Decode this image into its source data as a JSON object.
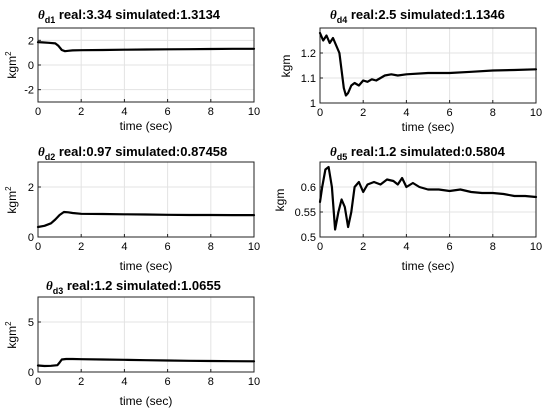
{
  "chart_data": [
    {
      "type": "line",
      "title": {
        "symbol": "θ",
        "subscript": "d1",
        "text": " real:3.34  simulated:1.3134"
      },
      "xlabel": "time (sec)",
      "ylabel": "kgm",
      "ylabel_sup": "2",
      "xlim": [
        0,
        10
      ],
      "ylim": [
        -3,
        3
      ],
      "xticks": [
        0,
        2,
        4,
        6,
        8,
        10
      ],
      "yticks": [
        -2,
        0,
        2
      ],
      "grid": true,
      "series": [
        {
          "x": [
            0,
            0.2,
            0.5,
            0.8,
            0.95,
            1.1,
            1.25,
            1.4,
            1.6,
            2.0,
            3,
            4,
            5,
            6,
            7,
            8,
            9,
            10
          ],
          "y": [
            1.85,
            1.83,
            1.8,
            1.75,
            1.55,
            1.22,
            1.12,
            1.15,
            1.18,
            1.2,
            1.22,
            1.24,
            1.26,
            1.27,
            1.28,
            1.3,
            1.31,
            1.31
          ]
        }
      ]
    },
    {
      "type": "line",
      "title": {
        "symbol": "θ",
        "subscript": "d4",
        "text": " real:2.5  simulated:1.1346"
      },
      "xlabel": "time (sec)",
      "ylabel": "kgm",
      "ylabel_sup": "",
      "xlim": [
        0,
        10
      ],
      "ylim": [
        1.0,
        1.3
      ],
      "xticks": [
        0,
        2,
        4,
        6,
        8,
        10
      ],
      "yticks": [
        1,
        1.1,
        1.2
      ],
      "grid": true,
      "series": [
        {
          "x": [
            0,
            0.15,
            0.3,
            0.45,
            0.6,
            0.75,
            0.9,
            1.0,
            1.1,
            1.2,
            1.3,
            1.45,
            1.6,
            1.8,
            2.0,
            2.2,
            2.4,
            2.6,
            2.8,
            3.0,
            3.3,
            3.6,
            4.0,
            5.0,
            6.0,
            7.0,
            8.0,
            9.0,
            10.0
          ],
          "y": [
            1.28,
            1.25,
            1.27,
            1.24,
            1.26,
            1.23,
            1.2,
            1.13,
            1.06,
            1.03,
            1.04,
            1.07,
            1.08,
            1.07,
            1.09,
            1.085,
            1.095,
            1.09,
            1.1,
            1.11,
            1.115,
            1.11,
            1.115,
            1.12,
            1.12,
            1.125,
            1.13,
            1.132,
            1.135
          ]
        }
      ]
    },
    {
      "type": "line",
      "title": {
        "symbol": "θ",
        "subscript": "d2",
        "text": " real:0.97  simulated:0.87458"
      },
      "xlabel": "time (sec)",
      "ylabel": "kgm",
      "ylabel_sup": "2",
      "xlim": [
        0,
        10
      ],
      "ylim": [
        0,
        3
      ],
      "xticks": [
        0,
        2,
        4,
        6,
        8,
        10
      ],
      "yticks": [
        0,
        2
      ],
      "grid": true,
      "series": [
        {
          "x": [
            0,
            0.3,
            0.6,
            0.8,
            1.0,
            1.2,
            1.4,
            1.6,
            2.0,
            3,
            4,
            5,
            6,
            7,
            8,
            9,
            10
          ],
          "y": [
            0.4,
            0.45,
            0.55,
            0.7,
            0.88,
            1.0,
            0.99,
            0.96,
            0.93,
            0.92,
            0.91,
            0.9,
            0.89,
            0.88,
            0.88,
            0.875,
            0.875
          ]
        }
      ]
    },
    {
      "type": "line",
      "title": {
        "symbol": "θ",
        "subscript": "d5",
        "text": " real:1.2  simulated:0.5804"
      },
      "xlabel": "time (sec)",
      "ylabel": "kgm",
      "ylabel_sup": "",
      "xlim": [
        0,
        10
      ],
      "ylim": [
        0.5,
        0.65
      ],
      "xticks": [
        0,
        2,
        4,
        6,
        8,
        10
      ],
      "yticks": [
        0.5,
        0.55,
        0.6
      ],
      "grid": true,
      "series": [
        {
          "x": [
            0,
            0.1,
            0.25,
            0.4,
            0.55,
            0.7,
            0.85,
            1.0,
            1.15,
            1.3,
            1.45,
            1.6,
            1.8,
            2.0,
            2.2,
            2.5,
            2.8,
            3.1,
            3.4,
            3.6,
            3.8,
            4.0,
            4.3,
            4.6,
            5.0,
            5.5,
            6.0,
            6.5,
            7.0,
            7.5,
            8.0,
            8.5,
            9.0,
            9.5,
            10.0
          ],
          "y": [
            0.57,
            0.6,
            0.635,
            0.64,
            0.6,
            0.515,
            0.55,
            0.575,
            0.56,
            0.52,
            0.55,
            0.6,
            0.61,
            0.59,
            0.605,
            0.61,
            0.605,
            0.615,
            0.612,
            0.605,
            0.618,
            0.6,
            0.608,
            0.6,
            0.595,
            0.595,
            0.592,
            0.595,
            0.59,
            0.588,
            0.588,
            0.586,
            0.582,
            0.582,
            0.58
          ]
        }
      ]
    },
    {
      "type": "line",
      "title": {
        "symbol": "θ",
        "subscript": "d3",
        "text": " real:1.2  simulated:1.0655"
      },
      "xlabel": "time (sec)",
      "ylabel": "kgm",
      "ylabel_sup": "2",
      "xlim": [
        0,
        10
      ],
      "ylim": [
        0,
        7.5
      ],
      "xticks": [
        0,
        2,
        4,
        6,
        8,
        10
      ],
      "yticks": [
        0,
        5
      ],
      "grid": true,
      "series": [
        {
          "x": [
            0,
            0.3,
            0.6,
            0.9,
            1.0,
            1.1,
            1.3,
            1.6,
            2.0,
            3,
            4,
            5,
            6,
            7,
            8,
            9,
            10
          ],
          "y": [
            0.65,
            0.6,
            0.62,
            0.68,
            0.95,
            1.25,
            1.3,
            1.3,
            1.28,
            1.25,
            1.22,
            1.18,
            1.15,
            1.12,
            1.1,
            1.08,
            1.07
          ]
        }
      ]
    }
  ]
}
